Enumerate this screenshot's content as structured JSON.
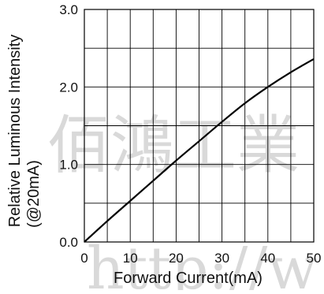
{
  "watermark": {
    "cjk": "佰鴻工業",
    "url": "http://w"
  },
  "chart_data": {
    "type": "line",
    "title": "",
    "xlabel": "Forward Current(mA)",
    "ylabel_line1": "Relative Luminous Intensity",
    "ylabel_line2": "(@20mA)",
    "xlim": [
      0,
      50
    ],
    "ylim": [
      0,
      3.0
    ],
    "x_ticks": [
      0,
      10,
      20,
      30,
      40,
      50
    ],
    "x_tick_labels": [
      "0",
      "10",
      "20",
      "30",
      "40",
      "50"
    ],
    "y_ticks": [
      0.0,
      1.0,
      2.0,
      3.0
    ],
    "y_tick_labels": [
      "0.0",
      "1.0",
      "2.0",
      "3.0"
    ],
    "x_grid": [
      0,
      5,
      10,
      15,
      20,
      25,
      30,
      35,
      40,
      45,
      50
    ],
    "y_grid": [
      0.0,
      0.5,
      1.0,
      1.5,
      2.0,
      2.5,
      3.0
    ],
    "grid": true,
    "series": [
      {
        "name": "",
        "color": "#000000",
        "x": [
          0,
          5,
          10,
          15,
          20,
          25,
          30,
          35,
          40,
          45,
          50
        ],
        "y": [
          0.0,
          0.27,
          0.53,
          0.79,
          1.05,
          1.3,
          1.55,
          1.79,
          2.0,
          2.19,
          2.36
        ]
      }
    ]
  }
}
